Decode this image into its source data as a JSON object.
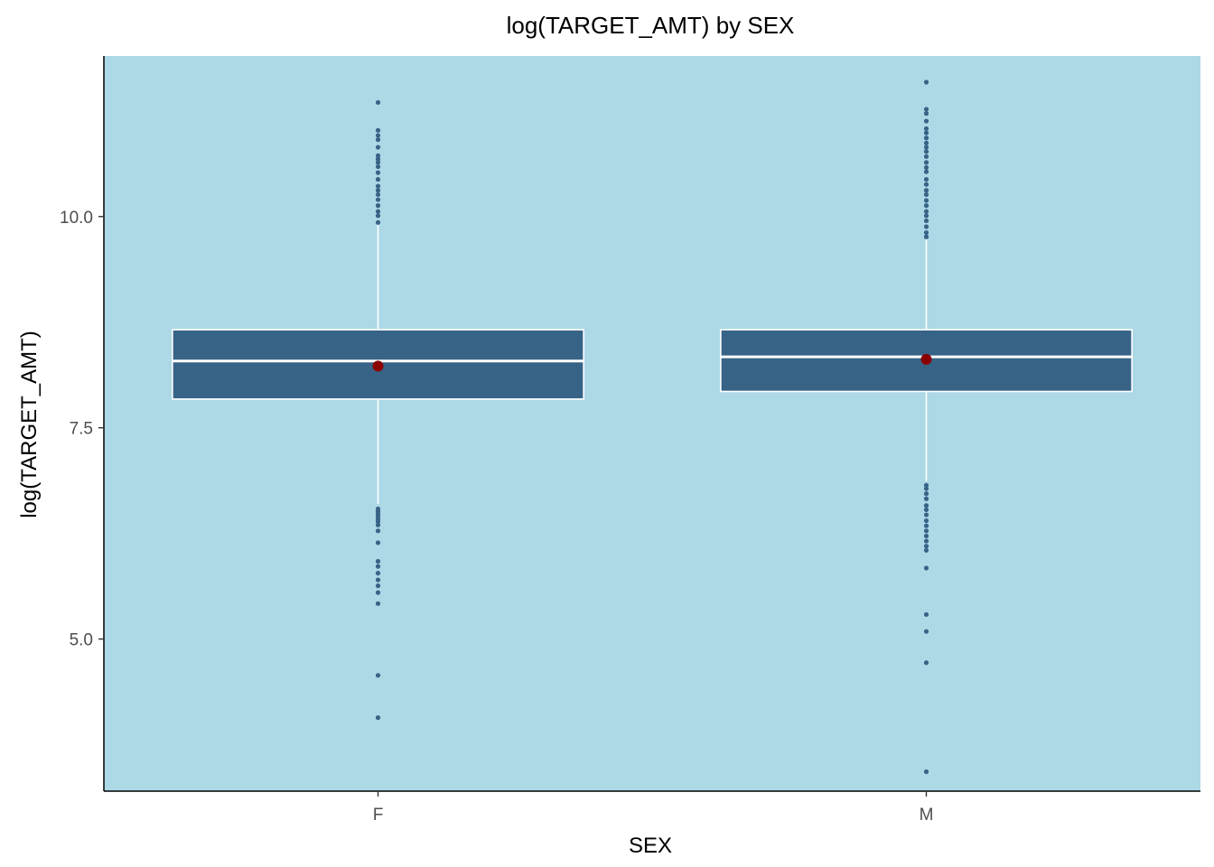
{
  "chart_data": {
    "type": "box",
    "title": "log(TARGET_AMT) by SEX",
    "xlabel": "SEX",
    "ylabel": "log(TARGET_AMT)",
    "categories": [
      "F",
      "M"
    ],
    "ylim": [
      3.2,
      11.9
    ],
    "yticks": [
      {
        "value": 5.0,
        "label": "5.0"
      },
      {
        "value": 7.5,
        "label": "7.5"
      },
      {
        "value": 10.0,
        "label": "10.0"
      }
    ],
    "grid": false,
    "colors": {
      "panel_background": "#add8e6",
      "box_fill": "#376387",
      "box_outline": "#ffffff",
      "outlier": "#376387",
      "mean_marker": "#8b0000"
    },
    "boxes": [
      {
        "category": "F",
        "q1": 7.84,
        "median": 8.29,
        "q3": 8.66,
        "whisker_low": 6.6,
        "whisker_high": 9.9,
        "mean": 8.23,
        "outliers": [
          11.35,
          11.02,
          10.96,
          10.91,
          10.82,
          10.72,
          10.68,
          10.64,
          10.59,
          10.52,
          10.44,
          10.36,
          10.31,
          10.26,
          10.2,
          10.13,
          10.06,
          10.01,
          9.93,
          6.54,
          6.51,
          6.48,
          6.45,
          6.42,
          6.39,
          6.35,
          6.28,
          6.14,
          5.92,
          5.86,
          5.78,
          5.7,
          5.63,
          5.55,
          5.42,
          4.57,
          4.07
        ]
      },
      {
        "category": "M",
        "q1": 7.93,
        "median": 8.34,
        "q3": 8.66,
        "whisker_low": 6.87,
        "whisker_high": 9.75,
        "mean": 8.31,
        "outliers": [
          11.59,
          11.27,
          11.22,
          11.13,
          11.04,
          10.99,
          10.93,
          10.87,
          10.82,
          10.77,
          10.71,
          10.64,
          10.58,
          10.53,
          10.44,
          10.38,
          10.31,
          10.26,
          10.19,
          10.13,
          10.06,
          10.01,
          9.95,
          9.88,
          9.81,
          9.76,
          6.82,
          6.78,
          6.72,
          6.66,
          6.58,
          6.53,
          6.47,
          6.4,
          6.34,
          6.28,
          6.22,
          6.16,
          6.1,
          6.05,
          5.84,
          5.29,
          5.09,
          4.72,
          3.43
        ]
      }
    ]
  }
}
